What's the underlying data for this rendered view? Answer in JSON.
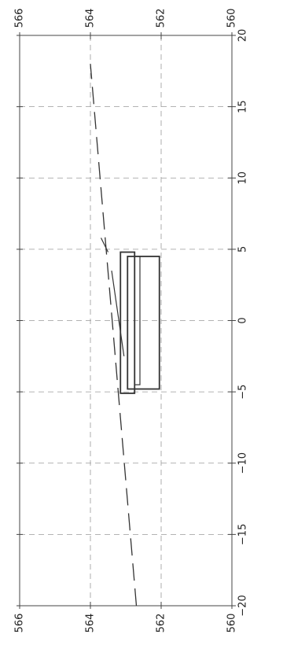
{
  "chart_data": {
    "type": "line",
    "orientation": "rotated-90",
    "grid": true,
    "x_ticks": [
      "−20",
      "−15",
      "−10",
      "−5",
      "0",
      "5",
      "10",
      "15",
      "20"
    ],
    "y_ticks_top": [
      "566",
      "564",
      "562",
      "560"
    ],
    "y_ticks_left": [
      "566",
      "564",
      "562",
      "560"
    ],
    "xlim": [
      -20,
      20
    ],
    "ylim": [
      560,
      566
    ],
    "series": [
      {
        "style": "long-dash",
        "x": [
          -20,
          18
        ],
        "y": [
          562.7,
          564.0
        ]
      }
    ],
    "structure": {
      "outer_box": {
        "x": [
          -5.1,
          4.8
        ],
        "y": [
          562.75,
          563.15
        ]
      },
      "inner_box": {
        "x": [
          -4.8,
          4.5
        ],
        "y": [
          562.05,
          562.95
        ]
      },
      "upper_slab": {
        "x": [
          -4.5,
          4.5
        ],
        "y": [
          562.6,
          562.75
        ]
      },
      "short_line": {
        "x": [
          -2.5,
          3.5
        ],
        "y": [
          563.05,
          563.4
        ]
      },
      "angled_line": {
        "x": [
          4.8,
          5.8
        ],
        "y": [
          563.5,
          563.7
        ]
      }
    }
  },
  "colors": {
    "axis": "#444444",
    "grid": "#9a9a9a",
    "line": "#333333"
  }
}
